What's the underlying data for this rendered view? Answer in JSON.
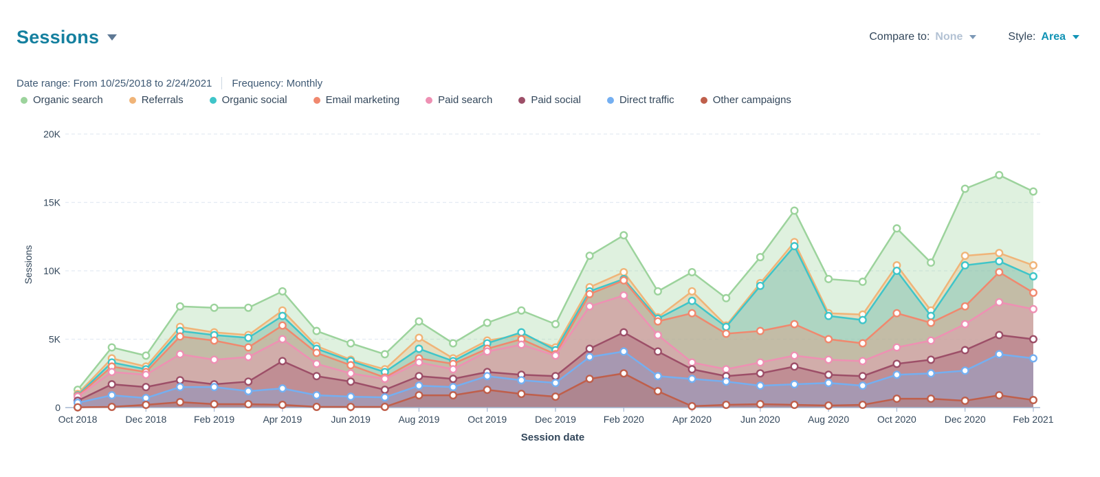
{
  "header": {
    "title": "Sessions",
    "compare_label": "Compare to:",
    "compare_value": "None",
    "style_label": "Style:",
    "style_value": "Area"
  },
  "meta": {
    "date_range_label": "Date range:",
    "date_range_value": "From 10/25/2018 to 2/24/2021",
    "frequency_label": "Frequency:",
    "frequency_value": "Monthly"
  },
  "legend": {
    "items": [
      {
        "label": "Organic search",
        "color": "#9cd39c"
      },
      {
        "label": "Referrals",
        "color": "#f0b478"
      },
      {
        "label": "Organic social",
        "color": "#3fc5c9"
      },
      {
        "label": "Email marketing",
        "color": "#f0886e"
      },
      {
        "label": "Paid search",
        "color": "#ee90b3"
      },
      {
        "label": "Paid social",
        "color": "#9d4f68"
      },
      {
        "label": "Direct traffic",
        "color": "#74aff1"
      },
      {
        "label": "Other campaigns",
        "color": "#bf5f4b"
      }
    ]
  },
  "colors": {
    "title_accent": "#15809f",
    "style_accent": "#1193b5",
    "muted_value": "#b3c2d4",
    "axis_line": "#a3b5d0",
    "gridline": "#e3eaf2",
    "text": "#33475b"
  },
  "chart_data": {
    "type": "area",
    "title": "Sessions",
    "xlabel": "Session date",
    "ylabel": "Sessions",
    "ylim": [
      0,
      20000
    ],
    "ytick_labels": [
      "0",
      "5K",
      "10K",
      "15K",
      "20K"
    ],
    "x_label_every": 2,
    "grid": "dashed-horizontal",
    "legend_position": "top",
    "categories": [
      "Oct 2018",
      "Nov 2018",
      "Dec 2018",
      "Jan 2019",
      "Feb 2019",
      "Mar 2019",
      "Apr 2019",
      "May 2019",
      "Jun 2019",
      "Jul 2019",
      "Aug 2019",
      "Sep 2019",
      "Oct 2019",
      "Nov 2019",
      "Dec 2019",
      "Jan 2020",
      "Feb 2020",
      "Mar 2020",
      "Apr 2020",
      "May 2020",
      "Jun 2020",
      "Jul 2020",
      "Aug 2020",
      "Sep 2020",
      "Oct 2020",
      "Nov 2020",
      "Dec 2020",
      "Jan 2021",
      "Feb 2021"
    ],
    "series": [
      {
        "name": "Organic search",
        "color": "#9cd39c",
        "values": [
          1300,
          4400,
          3800,
          7400,
          7300,
          7300,
          8500,
          5600,
          4700,
          3900,
          6300,
          4700,
          6200,
          7100,
          6100,
          11100,
          12600,
          8500,
          9900,
          8000,
          11000,
          14400,
          9400,
          9200,
          13100,
          10600,
          16000,
          17000,
          15800
        ]
      },
      {
        "name": "Referrals",
        "color": "#f0b478",
        "values": [
          1000,
          3600,
          3000,
          5900,
          5500,
          5300,
          7100,
          4500,
          3500,
          2800,
          5100,
          3600,
          4900,
          5300,
          4400,
          8800,
          9900,
          6600,
          8500,
          6000,
          9100,
          12100,
          6900,
          6800,
          10400,
          7100,
          11100,
          11300,
          10400
        ]
      },
      {
        "name": "Organic social",
        "color": "#3fc5c9",
        "values": [
          900,
          3300,
          2800,
          5600,
          5300,
          5100,
          6700,
          4300,
          3400,
          2600,
          4300,
          3400,
          4700,
          5500,
          4200,
          8500,
          9400,
          6500,
          7800,
          5900,
          8900,
          11800,
          6700,
          6400,
          10000,
          6700,
          10400,
          10700,
          9600
        ]
      },
      {
        "name": "Email marketing",
        "color": "#f0886e",
        "values": [
          850,
          3000,
          2600,
          5200,
          4900,
          4400,
          6000,
          4000,
          3100,
          2200,
          3600,
          3200,
          4300,
          5000,
          3900,
          8300,
          9300,
          6300,
          6900,
          5400,
          5600,
          6100,
          5000,
          4700,
          6900,
          6200,
          7400,
          9900,
          8400
        ]
      },
      {
        "name": "Paid search",
        "color": "#ee90b3",
        "values": [
          800,
          2600,
          2400,
          3900,
          3500,
          3700,
          5000,
          3200,
          2500,
          2100,
          3300,
          2800,
          4100,
          4600,
          3800,
          7400,
          8200,
          5300,
          3300,
          2800,
          3300,
          3800,
          3500,
          3400,
          4400,
          4900,
          6100,
          7700,
          7200
        ]
      },
      {
        "name": "Paid social",
        "color": "#9d4f68",
        "values": [
          500,
          1700,
          1500,
          2000,
          1700,
          1900,
          3400,
          2300,
          1900,
          1300,
          2300,
          2100,
          2600,
          2400,
          2300,
          4300,
          5500,
          4100,
          2800,
          2300,
          2500,
          3000,
          2400,
          2300,
          3200,
          3500,
          4200,
          5300,
          5000
        ]
      },
      {
        "name": "Direct traffic",
        "color": "#74aff1",
        "values": [
          350,
          900,
          700,
          1500,
          1500,
          1200,
          1400,
          900,
          800,
          750,
          1600,
          1500,
          2300,
          2000,
          1800,
          3700,
          4100,
          2300,
          2100,
          1900,
          1600,
          1700,
          1800,
          1600,
          2400,
          2500,
          2700,
          3900,
          3600
        ]
      },
      {
        "name": "Other campaigns",
        "color": "#bf5f4b",
        "values": [
          20,
          50,
          200,
          400,
          250,
          250,
          200,
          50,
          50,
          50,
          900,
          900,
          1300,
          1000,
          800,
          2100,
          2500,
          1200,
          100,
          200,
          250,
          200,
          150,
          200,
          650,
          650,
          500,
          900,
          550
        ]
      }
    ]
  }
}
